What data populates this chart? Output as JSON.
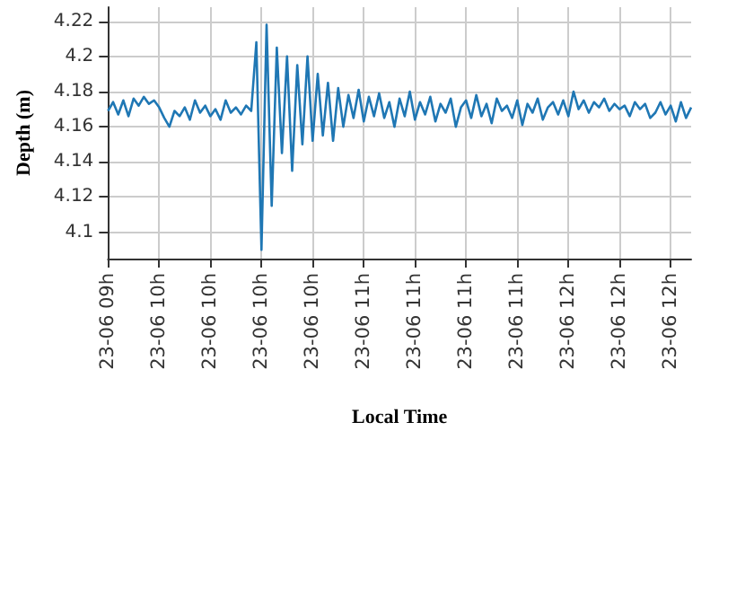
{
  "chart_data": {
    "type": "line",
    "xlabel": "Local Time",
    "ylabel": "Depth (m)",
    "categories": [
      "23-06 09h",
      null,
      null,
      null,
      null,
      null,
      null,
      null,
      null,
      null,
      "23-06 10h",
      null,
      null,
      null,
      null,
      null,
      null,
      null,
      null,
      null,
      "23-06 10h",
      null,
      null,
      null,
      null,
      null,
      null,
      null,
      null,
      null,
      "23-06 10h",
      null,
      null,
      null,
      null,
      null,
      null,
      null,
      null,
      null,
      "23-06 10h",
      null,
      null,
      null,
      null,
      null,
      null,
      null,
      null,
      null,
      "23-06 11h",
      null,
      null,
      null,
      null,
      null,
      null,
      null,
      null,
      null,
      "23-06 11h",
      null,
      null,
      null,
      null,
      null,
      null,
      null,
      null,
      null,
      "23-06 11h",
      null,
      null,
      null,
      null,
      null,
      null,
      null,
      null,
      null,
      "23-06 11h",
      null,
      null,
      null,
      null,
      null,
      null,
      null,
      null,
      null,
      "23-06 12h",
      null,
      null,
      null,
      null,
      null,
      null,
      null,
      null,
      null,
      "23-06 12h",
      null,
      null,
      null,
      null,
      null,
      null,
      null,
      null,
      null,
      "23-06 12h",
      null,
      null,
      null,
      null
    ],
    "values": [
      4.169,
      4.174,
      4.167,
      4.175,
      4.166,
      4.176,
      4.172,
      4.177,
      4.173,
      4.175,
      4.171,
      4.165,
      4.16,
      4.169,
      4.166,
      4.171,
      4.164,
      4.175,
      4.168,
      4.172,
      4.166,
      4.17,
      4.164,
      4.175,
      4.168,
      4.171,
      4.167,
      4.172,
      4.169,
      4.208,
      4.09,
      4.218,
      4.115,
      4.205,
      4.145,
      4.2,
      4.135,
      4.195,
      4.15,
      4.2,
      4.152,
      4.19,
      4.155,
      4.185,
      4.152,
      4.182,
      4.16,
      4.178,
      4.165,
      4.181,
      4.163,
      4.177,
      4.166,
      4.179,
      4.165,
      4.174,
      4.16,
      4.176,
      4.166,
      4.18,
      4.164,
      4.174,
      4.167,
      4.177,
      4.163,
      4.173,
      4.168,
      4.176,
      4.16,
      4.171,
      4.175,
      4.165,
      4.178,
      4.166,
      4.173,
      4.162,
      4.176,
      4.169,
      4.172,
      4.165,
      4.175,
      4.161,
      4.173,
      4.168,
      4.176,
      4.164,
      4.171,
      4.174,
      4.167,
      4.175,
      4.166,
      4.18,
      4.17,
      4.175,
      4.168,
      4.174,
      4.171,
      4.176,
      4.169,
      4.173,
      4.17,
      4.172,
      4.166,
      4.174,
      4.17,
      4.173,
      4.165,
      4.168,
      4.174,
      4.167,
      4.172,
      4.163,
      4.174,
      4.165,
      4.171
    ],
    "color": "#1f77b4",
    "ylim": [
      4.085,
      4.228
    ],
    "yticks": [
      4.1,
      4.12,
      4.14,
      4.16,
      4.18,
      4.2,
      4.22
    ],
    "grid": true,
    "marker": "none",
    "line_style": "solid"
  }
}
